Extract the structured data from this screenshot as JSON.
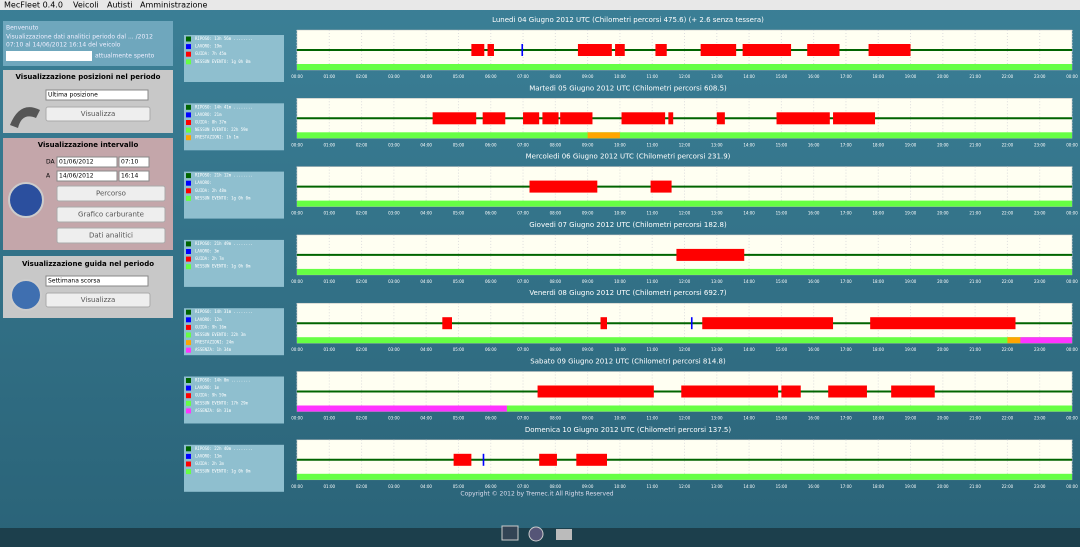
{
  "menu": {
    "items": [
      "MecFleet 0.4.0",
      "Veicoli",
      "Autisti",
      "Amministrazione"
    ]
  },
  "sidebar": {
    "welcome": "Benvenuto",
    "period_text": "Visualizzazione dati analitici periodo dal ... /2012",
    "period_text2": "07:10 al 14/06/2012 16:14 del veicolo",
    "vehicle_state": "attualmente spento",
    "positions": {
      "title": "Visualizzazione posizioni nel periodo",
      "select": "Ultima posizione",
      "button": "Visualizza"
    },
    "interval": {
      "title": "Visualizzazione intervallo",
      "from_label": "DA",
      "from_date": "01/06/2012",
      "from_time": "07:10",
      "to_label": "A",
      "to_date": "14/06/2012",
      "to_time": "16:14",
      "buttons": [
        "Percorso",
        "Grafico carburante",
        "Dati analitici"
      ]
    },
    "driving": {
      "title": "Visualizzazione guida nel periodo",
      "select": "Settimana scorsa",
      "button": "Visualizza"
    }
  },
  "hours": [
    "00:00",
    "01:00",
    "02:00",
    "03:00",
    "04:00",
    "05:00",
    "06:00",
    "07:00",
    "08:00",
    "09:00",
    "10:00",
    "11:00",
    "12:00",
    "13:00",
    "14:00",
    "15:00",
    "16:00",
    "17:00",
    "18:00",
    "19:00",
    "20:00",
    "21:00",
    "22:00",
    "23:00",
    "00:00"
  ],
  "days": [
    {
      "title": "Lunedi 04 Giugno 2012 UTC (Chilometri percorsi 475.6) (+ 2.6 senza tessera)",
      "legend": [
        {
          "text": "RIPOSO: 13h 56m ........",
          "color": "#006400"
        },
        {
          "text": "LAVORO: 19m",
          "color": "#0000ff"
        },
        {
          "text": "GUIDA: 7h 45m",
          "color": "#ff0000"
        },
        {
          "text": "NESSUN EVENTO: 1g 0h 0m",
          "color": "#66ff44"
        }
      ],
      "segments": [
        {
          "from": 5.4,
          "to": 5.8,
          "color": "#ff0000"
        },
        {
          "from": 5.9,
          "to": 6.1,
          "color": "#ff0000"
        },
        {
          "from": 6.95,
          "to": 7.0,
          "color": "#0000ff"
        },
        {
          "from": 8.7,
          "to": 9.75,
          "color": "#ff0000"
        },
        {
          "from": 9.85,
          "to": 10.15,
          "color": "#ff0000"
        },
        {
          "from": 11.1,
          "to": 11.45,
          "color": "#ff0000"
        },
        {
          "from": 12.5,
          "to": 13.6,
          "color": "#ff0000"
        },
        {
          "from": 13.8,
          "to": 15.3,
          "color": "#ff0000"
        },
        {
          "from": 15.8,
          "to": 16.8,
          "color": "#ff0000"
        },
        {
          "from": 17.7,
          "to": 19.0,
          "color": "#ff0000"
        }
      ],
      "status": []
    },
    {
      "title": "Martedi 05 Giugno 2012 UTC (Chilometri percorsi 608.5)",
      "legend": [
        {
          "text": "RIPOSO: 14h 41m ........",
          "color": "#006400"
        },
        {
          "text": "LAVORO: 21m",
          "color": "#0000ff"
        },
        {
          "text": "GUIDA: 8h 37m",
          "color": "#ff0000"
        },
        {
          "text": "NESSUN EVENTO: 22h 59m",
          "color": "#66ff44"
        },
        {
          "text": "PRESTAZIONI: 1h 1m",
          "color": "#ffa500"
        }
      ],
      "segments": [
        {
          "from": 4.2,
          "to": 5.55,
          "color": "#ff0000"
        },
        {
          "from": 5.75,
          "to": 6.45,
          "color": "#ff0000"
        },
        {
          "from": 7.0,
          "to": 7.5,
          "color": "#ff0000"
        },
        {
          "from": 7.6,
          "to": 8.1,
          "color": "#ff0000"
        },
        {
          "from": 8.15,
          "to": 9.15,
          "color": "#ff0000"
        },
        {
          "from": 10.05,
          "to": 11.4,
          "color": "#ff0000"
        },
        {
          "from": 11.5,
          "to": 11.65,
          "color": "#ff0000"
        },
        {
          "from": 13.0,
          "to": 13.25,
          "color": "#ff0000"
        },
        {
          "from": 14.85,
          "to": 16.5,
          "color": "#ff0000"
        },
        {
          "from": 16.6,
          "to": 17.9,
          "color": "#ff0000"
        }
      ],
      "status": [
        {
          "from": 9.0,
          "to": 10.0,
          "color": "#ffa500"
        }
      ]
    },
    {
      "title": "Mercoledi 06 Giugno 2012 UTC (Chilometri percorsi 231.9)",
      "legend": [
        {
          "text": "RIPOSO: 21h 12m ........",
          "color": "#006400"
        },
        {
          "text": "LAVORO:",
          "color": "#0000ff"
        },
        {
          "text": "GUIDA: 2h 48m",
          "color": "#ff0000"
        },
        {
          "text": "NESSUN EVENTO: 1g 0h 0m",
          "color": "#66ff44"
        }
      ],
      "segments": [
        {
          "from": 7.2,
          "to": 9.3,
          "color": "#ff0000"
        },
        {
          "from": 10.95,
          "to": 11.6,
          "color": "#ff0000"
        }
      ],
      "status": []
    },
    {
      "title": "Giovedi 07 Giugno 2012 UTC (Chilometri percorsi 182.8)",
      "legend": [
        {
          "text": "RIPOSO: 21h 49m ........",
          "color": "#006400"
        },
        {
          "text": "LAVORO: 3m",
          "color": "#0000ff"
        },
        {
          "text": "GUIDA: 2h 7m",
          "color": "#ff0000"
        },
        {
          "text": "NESSUN EVENTO: 1g 0h 0m",
          "color": "#66ff44"
        }
      ],
      "segments": [
        {
          "from": 11.75,
          "to": 13.85,
          "color": "#ff0000"
        }
      ],
      "status": []
    },
    {
      "title": "Venerdi 08 Giugno 2012 UTC (Chilometri percorsi 692.7)",
      "legend": [
        {
          "text": "RIPOSO: 14h 31m ........",
          "color": "#006400"
        },
        {
          "text": "LAVORO: 12m",
          "color": "#0000ff"
        },
        {
          "text": "GUIDA: 9h 16m",
          "color": "#ff0000"
        },
        {
          "text": "NESSUN EVENTO: 22h 3m",
          "color": "#66ff44"
        },
        {
          "text": "PRESTAZIONI: 24m",
          "color": "#ffa500"
        },
        {
          "text": "ASSENZA: 1h 34m",
          "color": "#ff33ff"
        }
      ],
      "segments": [
        {
          "from": 4.5,
          "to": 4.8,
          "color": "#ff0000"
        },
        {
          "from": 9.4,
          "to": 9.6,
          "color": "#ff0000"
        },
        {
          "from": 12.2,
          "to": 12.25,
          "color": "#0000ff"
        },
        {
          "from": 12.55,
          "to": 16.6,
          "color": "#ff0000"
        },
        {
          "from": 17.75,
          "to": 22.25,
          "color": "#ff0000"
        }
      ],
      "status": [
        {
          "from": 22.0,
          "to": 22.4,
          "color": "#ffa500"
        },
        {
          "from": 22.4,
          "to": 24.0,
          "color": "#ff33ff"
        }
      ]
    },
    {
      "title": "Sabato 09 Giugno 2012 UTC (Chilometri percorsi 814.8)",
      "legend": [
        {
          "text": "RIPOSO: 14h 0m ........",
          "color": "#006400"
        },
        {
          "text": "LAVORO: 1m",
          "color": "#0000ff"
        },
        {
          "text": "GUIDA: 9h 59m",
          "color": "#ff0000"
        },
        {
          "text": "NESSUN EVENTO: 17h 29m",
          "color": "#66ff44"
        },
        {
          "text": "ASSENZA: 6h 31m",
          "color": "#ff33ff"
        }
      ],
      "segments": [
        {
          "from": 7.45,
          "to": 11.05,
          "color": "#ff0000"
        },
        {
          "from": 11.9,
          "to": 14.9,
          "color": "#ff0000"
        },
        {
          "from": 15.0,
          "to": 15.6,
          "color": "#ff0000"
        },
        {
          "from": 16.45,
          "to": 17.65,
          "color": "#ff0000"
        },
        {
          "from": 18.4,
          "to": 19.75,
          "color": "#ff0000"
        }
      ],
      "status": [
        {
          "from": 0.0,
          "to": 6.5,
          "color": "#ff33ff"
        }
      ]
    },
    {
      "title": "Domenica 10 Giugno 2012 UTC (Chilometri percorsi 137.5)",
      "legend": [
        {
          "text": "RIPOSO: 22h 40m ........",
          "color": "#006400"
        },
        {
          "text": "LAVORO: 13m",
          "color": "#0000ff"
        },
        {
          "text": "GUIDA: 2h 2m",
          "color": "#ff0000"
        },
        {
          "text": "NESSUN EVENTO: 1g 0h 0m",
          "color": "#66ff44"
        }
      ],
      "segments": [
        {
          "from": 4.85,
          "to": 5.4,
          "color": "#ff0000"
        },
        {
          "from": 5.75,
          "to": 5.8,
          "color": "#0000ff"
        },
        {
          "from": 7.5,
          "to": 8.05,
          "color": "#ff0000"
        },
        {
          "from": 8.65,
          "to": 9.6,
          "color": "#ff0000"
        }
      ],
      "status": []
    }
  ],
  "footer": {
    "copyright": "Copyright © 2012 by Tremec.it All Rights Reserved"
  }
}
